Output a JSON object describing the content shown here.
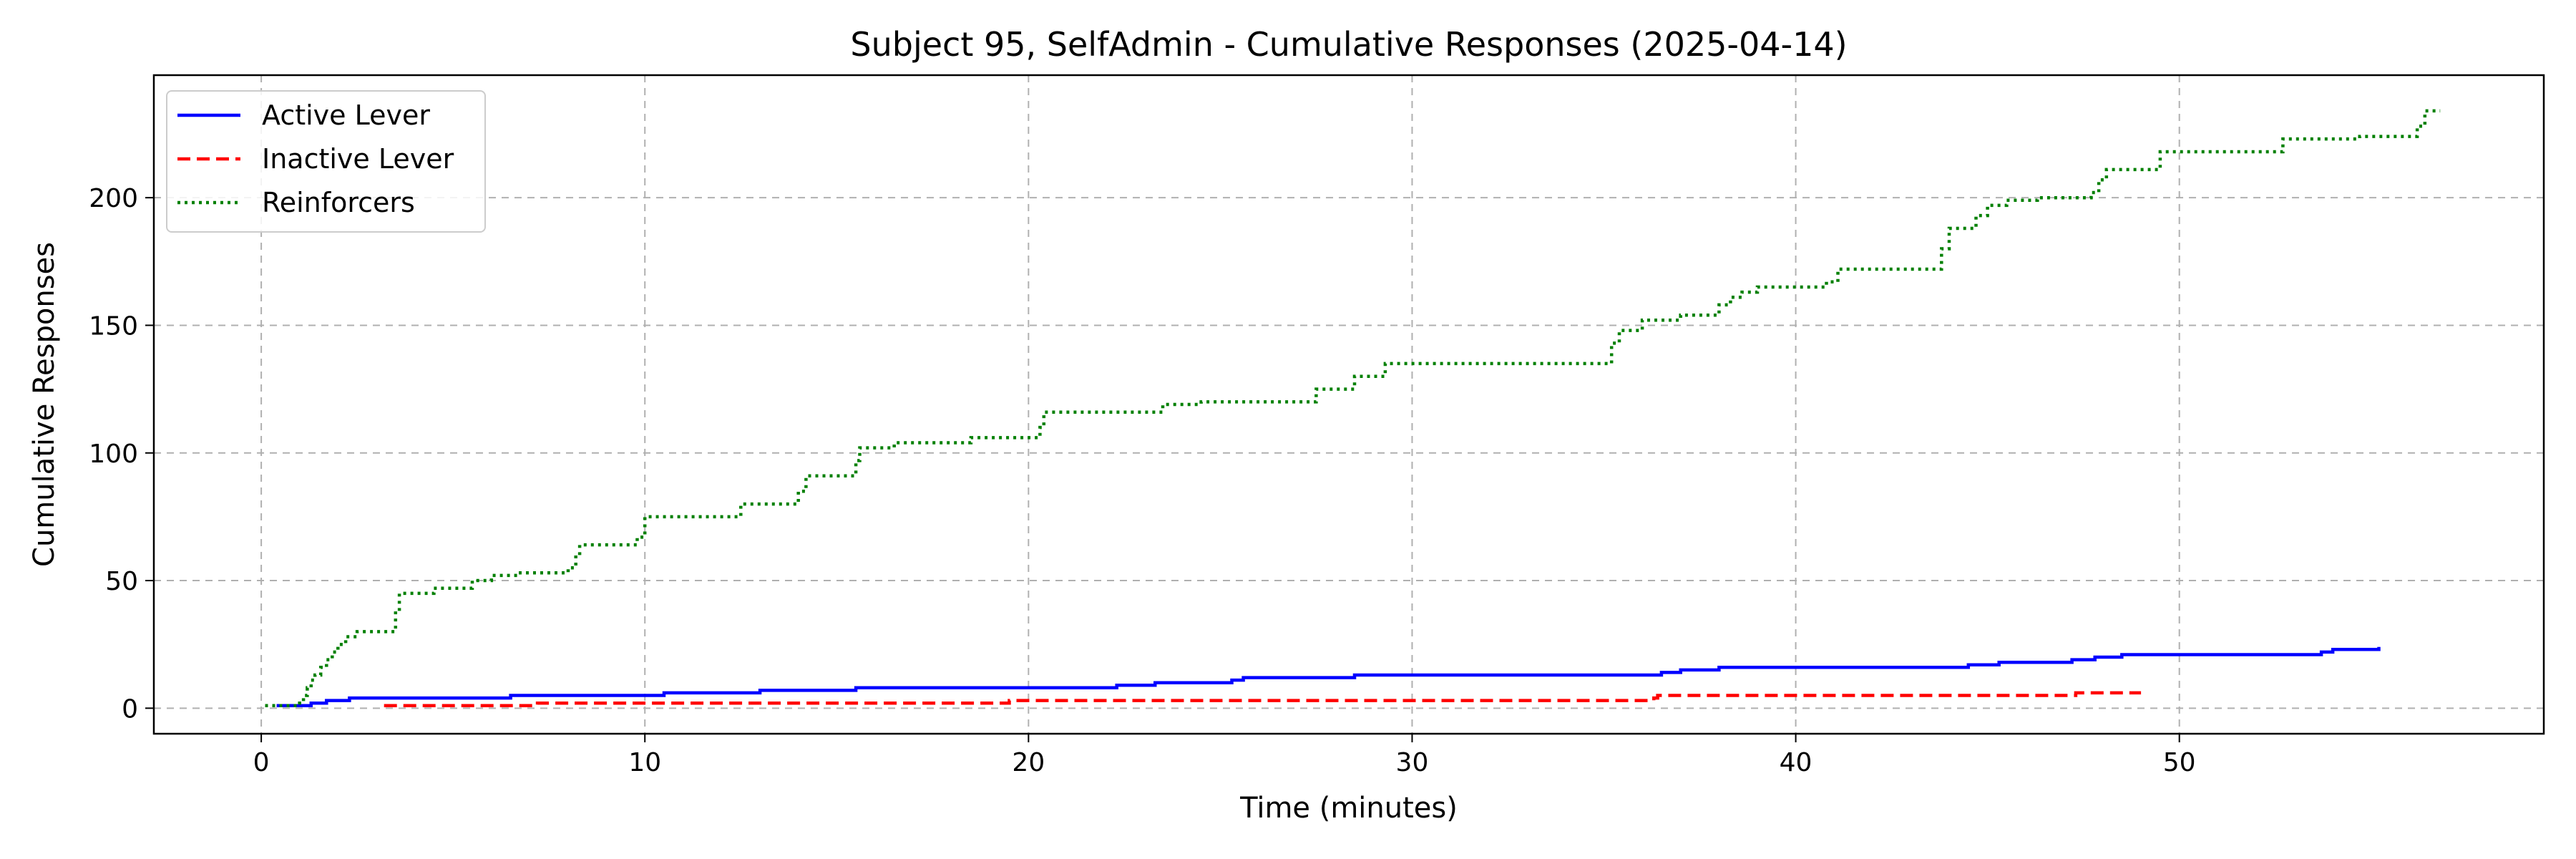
{
  "chart_data": {
    "type": "line",
    "title": "Subject 95, SelfAdmin - Cumulative Responses (2025-04-14)",
    "xlabel": "Time (minutes)",
    "ylabel": "Cumulative Responses",
    "xlim": [
      -2.8,
      59.5
    ],
    "ylim": [
      -10,
      248
    ],
    "xticks": [
      0,
      10,
      20,
      30,
      40,
      50
    ],
    "yticks": [
      0,
      50,
      100,
      150,
      200
    ],
    "grid": true,
    "legend_position": "upper-left",
    "series": [
      {
        "name": "Active Lever",
        "color": "#0000ff",
        "style": "solid",
        "points": [
          [
            0.4,
            1
          ],
          [
            1.3,
            2
          ],
          [
            1.7,
            3
          ],
          [
            2.3,
            4
          ],
          [
            6.5,
            5
          ],
          [
            10.5,
            6
          ],
          [
            13,
            7
          ],
          [
            15.5,
            8
          ],
          [
            22.3,
            9
          ],
          [
            23.3,
            10
          ],
          [
            25.3,
            11
          ],
          [
            25.6,
            12
          ],
          [
            28.5,
            13
          ],
          [
            36.5,
            14
          ],
          [
            37,
            15
          ],
          [
            38,
            16
          ],
          [
            44.5,
            17
          ],
          [
            45.3,
            18
          ],
          [
            47.2,
            19
          ],
          [
            47.8,
            20
          ],
          [
            48.5,
            21
          ],
          [
            53.7,
            22
          ],
          [
            54,
            23
          ],
          [
            55.2,
            24
          ]
        ]
      },
      {
        "name": "Inactive Lever",
        "color": "#ff0000",
        "style": "dashed",
        "points": [
          [
            3.2,
            1
          ],
          [
            7.2,
            2
          ],
          [
            19.5,
            3
          ],
          [
            36.3,
            4
          ],
          [
            36.4,
            5
          ],
          [
            47.3,
            6
          ],
          [
            49,
            6
          ]
        ]
      },
      {
        "name": "Reinforcers",
        "color": "#008000",
        "style": "dotted",
        "points": [
          [
            0.1,
            1
          ],
          [
            1.0,
            2
          ],
          [
            1.1,
            5
          ],
          [
            1.2,
            8
          ],
          [
            1.3,
            11
          ],
          [
            1.4,
            13
          ],
          [
            1.55,
            16
          ],
          [
            1.7,
            19
          ],
          [
            1.85,
            22
          ],
          [
            2.0,
            25
          ],
          [
            2.2,
            28
          ],
          [
            2.5,
            30
          ],
          [
            3.5,
            38
          ],
          [
            3.6,
            45
          ],
          [
            4.5,
            47
          ],
          [
            5.5,
            50
          ],
          [
            6.0,
            52
          ],
          [
            6.7,
            53
          ],
          [
            8.0,
            55
          ],
          [
            8.2,
            60
          ],
          [
            8.3,
            64
          ],
          [
            9.8,
            67
          ],
          [
            10.0,
            75
          ],
          [
            12.5,
            80
          ],
          [
            14.0,
            85
          ],
          [
            14.2,
            91
          ],
          [
            15.5,
            97
          ],
          [
            15.6,
            102
          ],
          [
            16.5,
            104
          ],
          [
            18.5,
            106
          ],
          [
            20.3,
            110
          ],
          [
            20.4,
            116
          ],
          [
            23.5,
            119
          ],
          [
            24.5,
            120
          ],
          [
            27.5,
            125
          ],
          [
            28.5,
            130
          ],
          [
            29.3,
            135
          ],
          [
            35.2,
            143
          ],
          [
            35.4,
            148
          ],
          [
            36.0,
            152
          ],
          [
            37.0,
            154
          ],
          [
            38.0,
            158
          ],
          [
            38.3,
            161
          ],
          [
            38.6,
            163
          ],
          [
            39.0,
            165
          ],
          [
            40.8,
            167
          ],
          [
            41.1,
            172
          ],
          [
            43.8,
            180
          ],
          [
            44.0,
            188
          ],
          [
            44.7,
            193
          ],
          [
            45.0,
            197
          ],
          [
            45.5,
            199
          ],
          [
            46.3,
            200
          ],
          [
            47.7,
            202
          ],
          [
            47.9,
            207
          ],
          [
            48.1,
            211
          ],
          [
            49.5,
            218
          ],
          [
            52.7,
            223
          ],
          [
            54.7,
            224
          ],
          [
            56.2,
            228
          ],
          [
            56.4,
            234
          ],
          [
            56.8,
            234
          ]
        ]
      }
    ]
  }
}
